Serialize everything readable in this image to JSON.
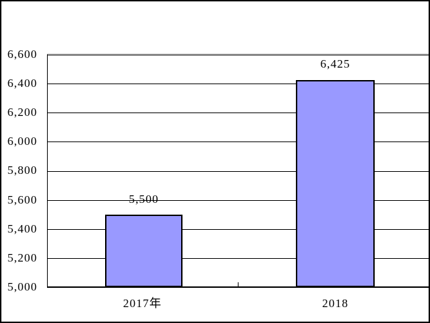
{
  "chart_data": {
    "type": "bar",
    "title": "",
    "categories": [
      "2017年",
      "2018"
    ],
    "values": [
      5500,
      6425
    ],
    "data_labels": [
      "5,500",
      "6,425"
    ],
    "series": [
      {
        "name": "",
        "values": [
          5500,
          6425
        ]
      }
    ],
    "xlabel": "",
    "ylabel": "",
    "ylim": [
      5000,
      6600
    ],
    "ytick_interval": 200,
    "yticks": [
      "6,600",
      "6,400",
      "6,200",
      "6,000",
      "5,800",
      "5,600",
      "5,400",
      "5,200",
      "5,000"
    ],
    "grid": true,
    "legend": false,
    "legend_position": "none",
    "colors": {
      "bar_fill": "#9999FF",
      "bar_border": "#000000",
      "gridline": "#000000",
      "plot_top_border": "#888888",
      "axis": "#000000",
      "background": "#FFFFFF",
      "text": "#000000"
    }
  }
}
